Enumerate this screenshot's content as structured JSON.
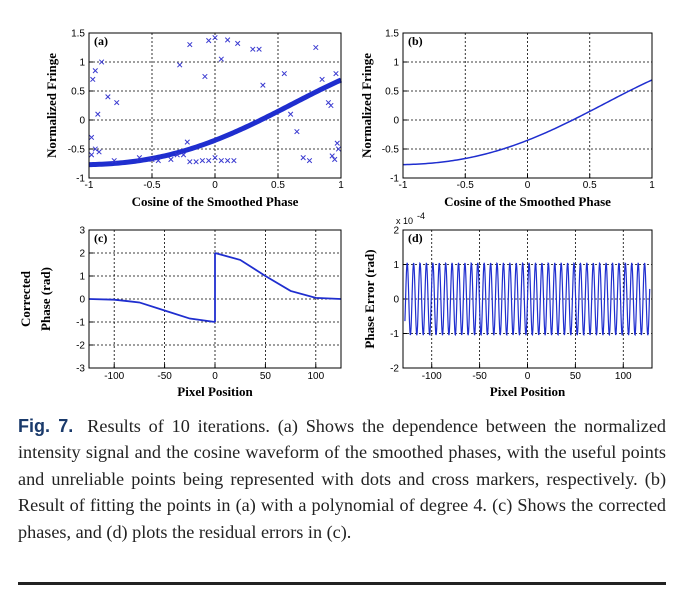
{
  "chart_data": [
    {
      "panel": "(a)",
      "type": "scatter",
      "xlabel": "Cosine of the Smoothed Phase",
      "ylabel": "Normalized Fringe",
      "xlim": [
        -1,
        1
      ],
      "ylim": [
        -1,
        1.5
      ],
      "xticks": [
        -1,
        -0.5,
        0,
        0.5,
        1
      ],
      "xticklabels": [
        "-1",
        "-0.5",
        "0",
        "0.5",
        "1"
      ],
      "yticks": [
        -1,
        -0.5,
        0,
        0.5,
        1,
        1.5
      ],
      "yticklabels": [
        "-1",
        "-0.5",
        "0",
        "0.5",
        "1",
        "1.5"
      ],
      "grid": true,
      "curve_coeffs": [
        -0.35,
        0.84,
        0.39,
        -0.11,
        -0.08
      ],
      "series": [
        {
          "marker": "dot",
          "note": "useful points along the fitted curve from x=-1 to x=1"
        },
        {
          "marker": "cross",
          "points": [
            [
              -0.98,
              -0.3
            ],
            [
              -0.97,
              0.7
            ],
            [
              -0.95,
              0.85
            ],
            [
              -0.93,
              0.1
            ],
            [
              -0.92,
              -0.55
            ],
            [
              -0.9,
              1.0
            ],
            [
              -0.85,
              0.4
            ],
            [
              -0.8,
              -0.7
            ],
            [
              -0.78,
              0.3
            ],
            [
              -0.98,
              -0.6
            ],
            [
              -0.95,
              -0.5
            ],
            [
              -0.6,
              -0.65
            ],
            [
              -0.5,
              -0.68
            ],
            [
              -0.45,
              -0.7
            ],
            [
              -0.35,
              -0.68
            ],
            [
              -0.3,
              -0.6
            ],
            [
              -0.25,
              -0.6
            ],
            [
              -0.22,
              -0.38
            ],
            [
              -0.2,
              -0.72
            ],
            [
              -0.15,
              -0.72
            ],
            [
              -0.1,
              -0.7
            ],
            [
              -0.05,
              -0.7
            ],
            [
              0.0,
              -0.65
            ],
            [
              0.05,
              -0.7
            ],
            [
              0.1,
              -0.7
            ],
            [
              0.15,
              -0.7
            ],
            [
              -0.28,
              0.95
            ],
            [
              -0.2,
              1.3
            ],
            [
              -0.08,
              0.75
            ],
            [
              -0.05,
              1.37
            ],
            [
              0.0,
              1.42
            ],
            [
              0.05,
              1.05
            ],
            [
              0.1,
              1.38
            ],
            [
              0.18,
              1.32
            ],
            [
              0.3,
              1.22
            ],
            [
              0.35,
              1.22
            ],
            [
              0.38,
              0.6
            ],
            [
              0.55,
              0.8
            ],
            [
              0.6,
              0.1
            ],
            [
              0.65,
              -0.2
            ],
            [
              0.7,
              -0.65
            ],
            [
              0.8,
              1.25
            ],
            [
              0.9,
              0.3
            ],
            [
              0.92,
              0.25
            ],
            [
              0.93,
              -0.62
            ],
            [
              0.95,
              -0.68
            ],
            [
              0.96,
              0.8
            ],
            [
              0.97,
              -0.4
            ],
            [
              0.98,
              -0.5
            ],
            [
              0.85,
              0.7
            ],
            [
              0.75,
              -0.7
            ]
          ]
        }
      ]
    },
    {
      "panel": "(b)",
      "type": "line",
      "xlabel": "Cosine of the Smoothed Phase",
      "ylabel": "Normalized Fringe",
      "xlim": [
        -1,
        1
      ],
      "ylim": [
        -1,
        1.5
      ],
      "xticks": [
        -1,
        -0.5,
        0,
        0.5,
        1
      ],
      "xticklabels": [
        "-1",
        "-0.5",
        "0",
        "0.5",
        "1"
      ],
      "yticks": [
        -1,
        -0.5,
        0,
        0.5,
        1,
        1.5
      ],
      "yticklabels": [
        "-1",
        "-0.5",
        "0",
        "0.5",
        "1",
        "1.5"
      ],
      "grid": true,
      "curve_coeffs": [
        -0.35,
        0.84,
        0.39,
        -0.11,
        -0.08
      ]
    },
    {
      "panel": "(c)",
      "type": "line",
      "xlabel": "Pixel Position",
      "ylabel": "Corrected Phase (rad)",
      "xlim": [
        -125,
        125
      ],
      "ylim": [
        -3,
        3
      ],
      "xticks": [
        -100,
        -50,
        0,
        50,
        100
      ],
      "xticklabels": [
        "-100",
        "-50",
        "0",
        "50",
        "100"
      ],
      "yticks": [
        -3,
        -2,
        -1,
        0,
        1,
        2,
        3
      ],
      "yticklabels": [
        "-3",
        "-2",
        "-1",
        "0",
        "1",
        "2",
        "3"
      ],
      "grid": true,
      "segments": [
        {
          "x": [
            -125,
            -100,
            -75,
            -50,
            -25,
            0
          ],
          "y": [
            0,
            -0.03,
            -0.15,
            -0.5,
            -0.85,
            -1.0
          ]
        },
        {
          "x": [
            0,
            25,
            50,
            75,
            100,
            125
          ],
          "y": [
            2.0,
            1.7,
            1.0,
            0.35,
            0.05,
            0.0
          ]
        }
      ]
    },
    {
      "panel": "(d)",
      "type": "line",
      "xlabel": "Pixel Position",
      "ylabel": "Phase Error (rad)",
      "xlim": [
        -130,
        130
      ],
      "ylim": [
        -2,
        2
      ],
      "y_multiplier": "x 10",
      "y_multiplier_exp": "-4",
      "xticks": [
        -100,
        -50,
        0,
        50,
        100
      ],
      "xticklabels": [
        "-100",
        "-50",
        "0",
        "50",
        "100"
      ],
      "yticks": [
        -2,
        -1,
        0,
        1,
        2
      ],
      "yticklabels": [
        "-2",
        "-1",
        "0",
        "1",
        "2"
      ],
      "grid": true,
      "amplitude": 1.05,
      "period": 6.7
    }
  ],
  "caption": {
    "fig": "Fig. 7.",
    "text": "Results of 10 iterations. (a) Shows the dependence between the normalized intensity signal and the cosine waveform of the smoothed phases, with the useful points and unreliable points being represented with dots and cross markers, respectively. (b) Result of fitting the points in (a) with a polynomial of degree 4. (c) Shows the corrected phases, and (d) plots the residual errors in (c)."
  },
  "colors": {
    "curve": "#1f2ecf",
    "marker": "#3a3ad0",
    "grid": "#000000"
  }
}
